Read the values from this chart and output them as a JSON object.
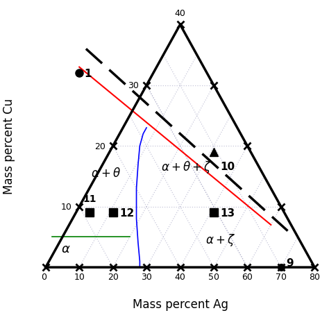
{
  "xlabel": "Mass percent Ag",
  "ylabel": "Mass percent Cu",
  "ag_ticks": [
    0,
    10,
    20,
    30,
    40,
    50,
    60,
    70,
    80
  ],
  "cu_ticks": [
    0,
    10,
    20,
    30,
    40
  ],
  "point1": {
    "ag": 10,
    "cu": 32,
    "label": "1",
    "marker": "o"
  },
  "point9": {
    "ag": 70,
    "cu": 0,
    "label": "9",
    "marker": "o"
  },
  "point10": {
    "ag": 50,
    "cu": 19,
    "label": "10",
    "marker": "^"
  },
  "point11": {
    "ag": 13,
    "cu": 9,
    "label": "11",
    "marker": "s"
  },
  "point12": {
    "ag": 20,
    "cu": 9,
    "label": "12",
    "marker": "s"
  },
  "point13": {
    "ag": 50,
    "cu": 9,
    "label": "13",
    "marker": "s"
  },
  "red_line_ag": [
    10,
    67
  ],
  "red_line_cu": [
    33,
    7
  ],
  "blue_ag": [
    28,
    28,
    27.5,
    27,
    27,
    27.5,
    28,
    29,
    30
  ],
  "blue_cu": [
    0,
    1,
    4,
    8,
    13,
    17,
    20,
    22,
    23
  ],
  "green_ag": [
    2,
    25
  ],
  "green_cu": [
    5,
    5
  ],
  "dashed_ag": [
    12,
    72
  ],
  "dashed_cu": [
    36,
    6
  ],
  "label_alpha": [
    6,
    2.5
  ],
  "label_alpha_theta": [
    18,
    15
  ],
  "label_alpha_theta_zeta": [
    42,
    16
  ],
  "label_alpha_zeta": [
    52,
    4
  ],
  "grid_color": "#9999bb",
  "grid_alpha": 0.55
}
